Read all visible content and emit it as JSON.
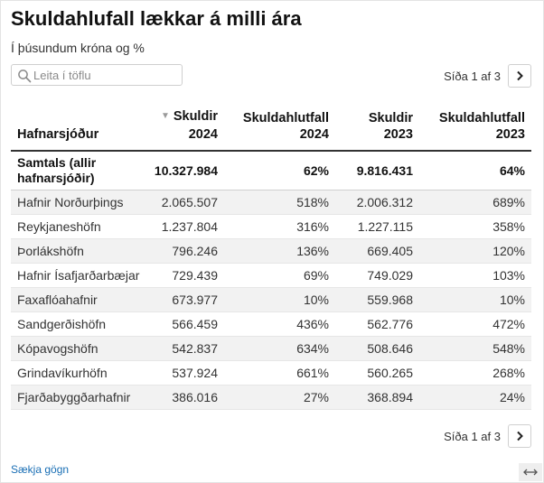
{
  "title": "Skuldahlufall lækkar á milli ára",
  "subtitle": "Í þúsundum króna og %",
  "search": {
    "placeholder": "Leita í töflu",
    "icon": "search-icon"
  },
  "pagination": {
    "info": "Síða 1 af 3",
    "next_icon": "chevron-right-icon"
  },
  "table": {
    "columns": [
      {
        "label": "Hafnarsjóður",
        "sorted": false
      },
      {
        "label_line1": "Skuldir",
        "label_line2": "2024",
        "sorted": true,
        "sort_icon": "sort-desc-icon"
      },
      {
        "label_line1": "Skuldahlutfall",
        "label_line2": "2024",
        "sorted": false
      },
      {
        "label_line1": "Skuldir",
        "label_line2": "2023",
        "sorted": false
      },
      {
        "label_line1": "Skuldahlutfall",
        "label_line2": "2023",
        "sorted": false
      }
    ],
    "total": {
      "name": "Samtals (allir hafnarsjóðir)",
      "debt2024": "10.327.984",
      "ratio2024": "62%",
      "debt2023": "9.816.431",
      "ratio2023": "64%"
    },
    "rows": [
      {
        "name": "Hafnir Norðurþings",
        "debt2024": "2.065.507",
        "ratio2024": "518%",
        "debt2023": "2.006.312",
        "ratio2023": "689%"
      },
      {
        "name": "Reykjaneshöfn",
        "debt2024": "1.237.804",
        "ratio2024": "316%",
        "debt2023": "1.227.115",
        "ratio2023": "358%"
      },
      {
        "name": "Þorlákshöfn",
        "debt2024": "796.246",
        "ratio2024": "136%",
        "debt2023": "669.405",
        "ratio2023": "120%"
      },
      {
        "name": "Hafnir Ísafjarðarbæjar",
        "debt2024": "729.439",
        "ratio2024": "69%",
        "debt2023": "749.029",
        "ratio2023": "103%"
      },
      {
        "name": "Faxaflóahafnir",
        "debt2024": "673.977",
        "ratio2024": "10%",
        "debt2023": "559.968",
        "ratio2023": "10%"
      },
      {
        "name": "Sandgerðishöfn",
        "debt2024": "566.459",
        "ratio2024": "436%",
        "debt2023": "562.776",
        "ratio2023": "472%"
      },
      {
        "name": "Kópavogshöfn",
        "debt2024": "542.837",
        "ratio2024": "634%",
        "debt2023": "508.646",
        "ratio2023": "548%"
      },
      {
        "name": "Grindavíkurhöfn",
        "debt2024": "537.924",
        "ratio2024": "661%",
        "debt2023": "560.265",
        "ratio2023": "268%"
      },
      {
        "name": "Fjarðabyggðarhafnir",
        "debt2024": "386.016",
        "ratio2024": "27%",
        "debt2023": "368.894",
        "ratio2023": "24%"
      }
    ]
  },
  "footer": {
    "download_label": "Sækja gögn",
    "expand_icon": "expand-arrows-icon"
  },
  "colors": {
    "link": "#1a6fb5",
    "row_alt": "#f2f2f2",
    "header_rule": "#333333"
  }
}
